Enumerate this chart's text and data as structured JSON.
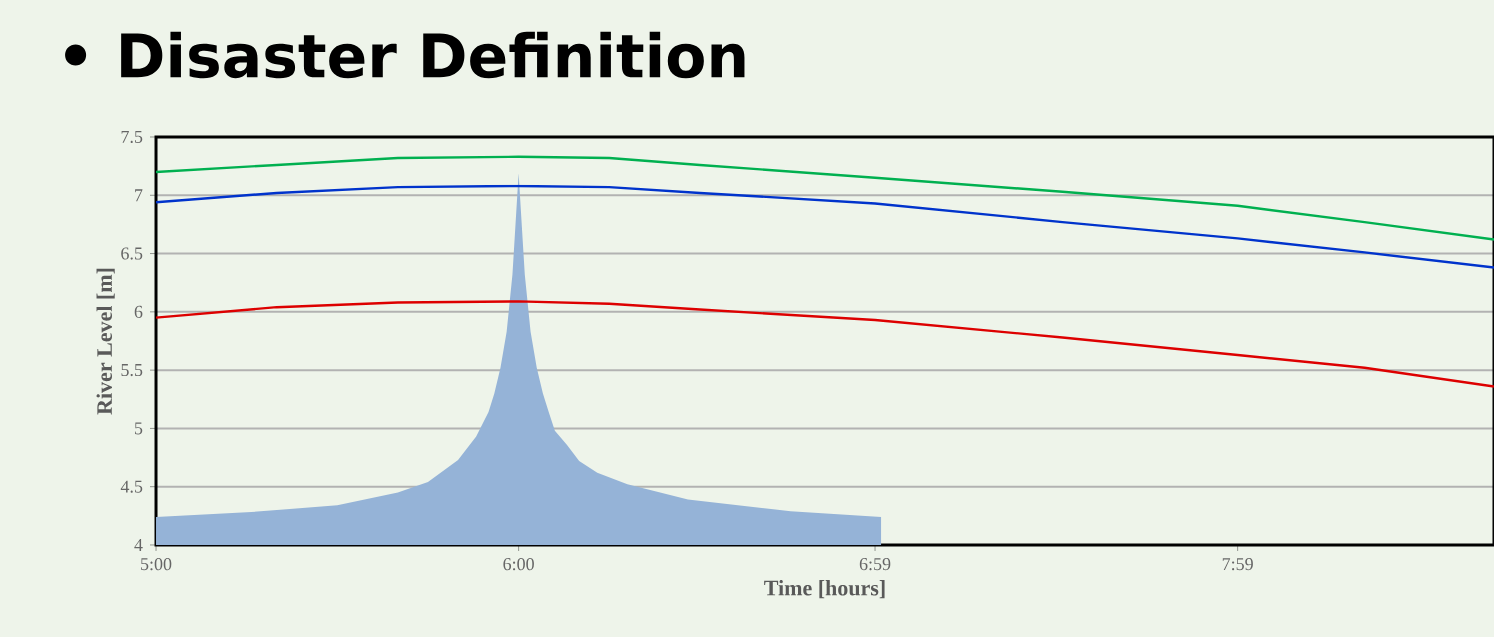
{
  "chart_data": {
    "type": "line",
    "title": "• Disaster Definition",
    "xlabel": "Time [hours]",
    "ylabel": "River Level [m]",
    "xlim": [
      5,
      8.69
    ],
    "ylim": [
      4,
      7.5
    ],
    "grid": "y",
    "xticks": [
      {
        "value": 5,
        "label": "5:00"
      },
      {
        "value": 6,
        "label": "6:00"
      },
      {
        "value": 6.983,
        "label": "6:59"
      },
      {
        "value": 7.983,
        "label": "7:59"
      }
    ],
    "yticks": [
      4,
      4.5,
      5,
      5.5,
      6,
      6.5,
      7,
      7.5
    ],
    "series": [
      {
        "type": "area",
        "color": "#95b3d7",
        "x": [
          5,
          5.25,
          5.5,
          5.667,
          5.75,
          5.833,
          5.883,
          5.917,
          5.933,
          5.95,
          5.967,
          5.983,
          6,
          6.017,
          6.033,
          6.05,
          6.067,
          6.083,
          6.1,
          6.133,
          6.167,
          6.217,
          6.3,
          6.467,
          6.75,
          7
        ],
        "values": [
          4.24,
          4.28,
          4.34,
          4.45,
          4.54,
          4.73,
          4.93,
          5.14,
          5.3,
          5.52,
          5.83,
          6.32,
          7.19,
          6.32,
          5.83,
          5.52,
          5.3,
          5.14,
          4.98,
          4.86,
          4.72,
          4.62,
          4.52,
          4.39,
          4.29,
          4.24
        ]
      },
      {
        "color": "#00b050",
        "x": [
          5,
          5.333,
          5.667,
          6,
          6.25,
          6.5,
          6.983,
          7.5,
          7.983,
          8.333,
          8.69
        ],
        "values": [
          7.2,
          7.26,
          7.32,
          7.33,
          7.32,
          7.26,
          7.15,
          7.03,
          6.91,
          6.77,
          6.62
        ]
      },
      {
        "color": "#0033cc",
        "x": [
          5,
          5.333,
          5.667,
          6,
          6.25,
          6.5,
          6.983,
          7.5,
          7.983,
          8.333,
          8.69
        ],
        "values": [
          6.94,
          7.02,
          7.07,
          7.08,
          7.07,
          7.02,
          6.93,
          6.77,
          6.63,
          6.51,
          6.38
        ]
      },
      {
        "color": "#dd0000",
        "x": [
          5,
          5.333,
          5.667,
          6,
          6.25,
          6.5,
          6.983,
          7.5,
          7.983,
          8.333,
          8.69
        ],
        "values": [
          5.95,
          6.04,
          6.08,
          6.09,
          6.07,
          6.02,
          5.93,
          5.78,
          5.63,
          5.52,
          5.36
        ]
      }
    ]
  }
}
